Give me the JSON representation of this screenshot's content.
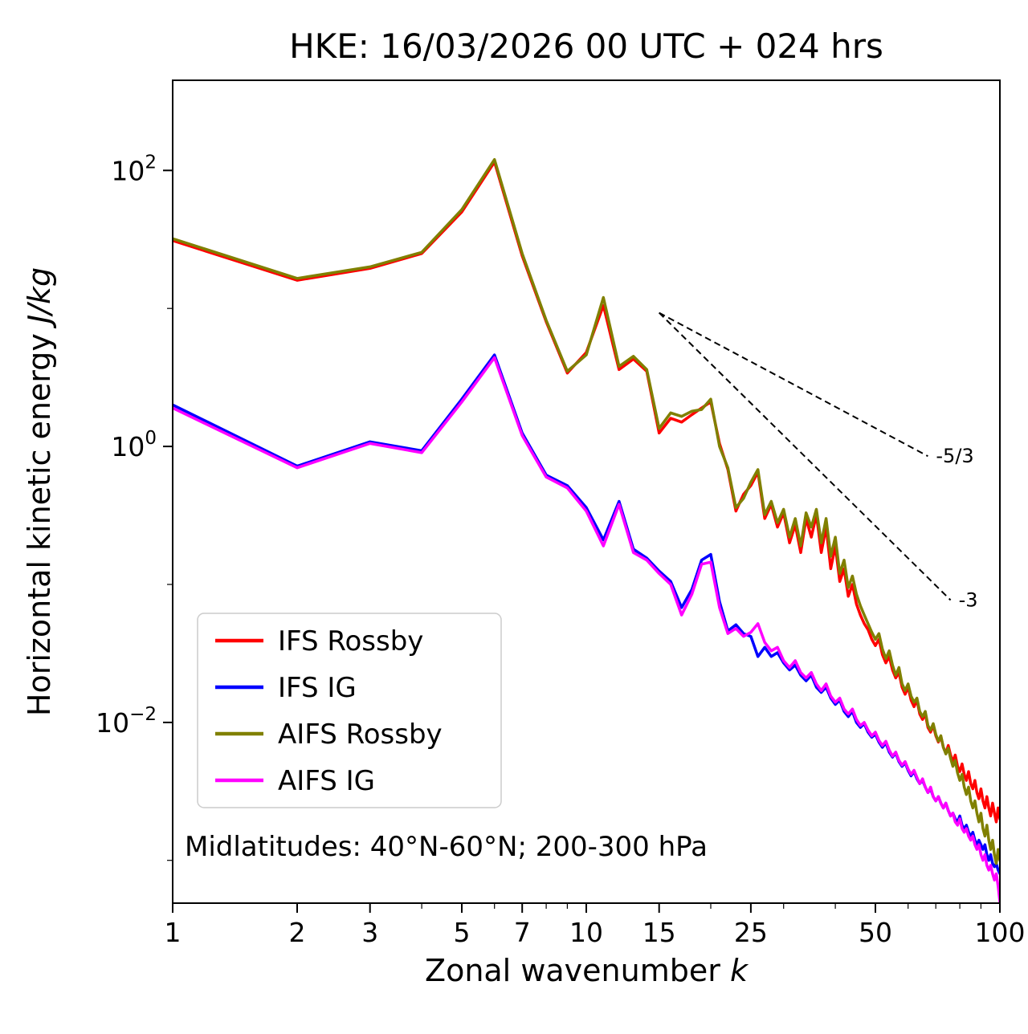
{
  "figure": {
    "title": "HKE: 16/03/2026 00 UTC + 024 hrs",
    "annotation": "Midlatitudes: 40°N-60°N; 200-300 hPa"
  },
  "chart_data": {
    "type": "line",
    "title": "HKE: 16/03/2026 00 UTC + 024 hrs",
    "xlabel": {
      "text": "Zonal wavenumber ",
      "italic": "k"
    },
    "ylabel": {
      "text": "Horizontal kinetic energy ",
      "italic": "J/kg"
    },
    "annotation": "Midlatitudes: 40°N-60°N; 200-300 hPa",
    "xscale": "log",
    "yscale": "log",
    "xlim": [
      1,
      100
    ],
    "ylim": [
      0.00049,
      450
    ],
    "xticks_major": [
      1,
      2,
      3,
      5,
      7,
      10,
      15,
      25,
      50,
      100
    ],
    "xticks_minor": [
      4,
      6,
      8,
      9,
      20,
      30,
      40,
      60,
      70,
      80,
      90
    ],
    "yticks": [
      {
        "exp": 2,
        "label": true
      },
      {
        "exp": 1,
        "label": false
      },
      {
        "exp": 0,
        "label": true
      },
      {
        "exp": -1,
        "label": false
      },
      {
        "exp": -2,
        "label": true
      },
      {
        "exp": -3,
        "label": false
      }
    ],
    "legend": {
      "position": "lower-left"
    },
    "reference_lines": [
      {
        "label": "-5/3",
        "x": [
          15,
          67
        ],
        "y": [
          9.3,
          0.85
        ]
      },
      {
        "label": "-3",
        "x": [
          15,
          76
        ],
        "y": [
          9.3,
          0.077
        ]
      }
    ],
    "x": [
      1,
      2,
      3,
      4,
      5,
      6,
      7,
      8,
      9,
      10,
      11,
      12,
      13,
      14,
      15,
      16,
      17,
      18,
      19,
      20,
      21,
      22,
      23,
      24,
      25,
      26,
      27,
      28,
      29,
      30,
      31,
      32,
      33,
      34,
      35,
      36,
      37,
      38,
      39,
      40,
      41,
      42,
      43,
      44,
      45,
      46,
      47,
      48,
      49,
      50,
      51,
      52,
      53,
      54,
      55,
      56,
      57,
      58,
      59,
      60,
      61,
      62,
      63,
      64,
      65,
      66,
      67,
      68,
      69,
      70,
      71,
      72,
      73,
      74,
      75,
      76,
      77,
      78,
      79,
      80,
      81,
      82,
      83,
      84,
      85,
      86,
      87,
      88,
      89,
      90,
      91,
      92,
      93,
      94,
      95,
      96,
      97,
      98,
      99,
      100
    ],
    "series": [
      {
        "name": "IFS Rossby",
        "color": "#ff0000",
        "values": [
          31,
          16,
          19.5,
          25,
          50,
          115,
          24,
          8.0,
          3.4,
          4.8,
          10.5,
          3.6,
          4.3,
          3.5,
          1.25,
          1.6,
          1.5,
          1.7,
          1.9,
          2.1,
          1.05,
          0.68,
          0.34,
          0.45,
          0.52,
          0.65,
          0.3,
          0.38,
          0.26,
          0.33,
          0.2,
          0.27,
          0.17,
          0.3,
          0.22,
          0.32,
          0.17,
          0.26,
          0.13,
          0.19,
          0.105,
          0.13,
          0.082,
          0.1,
          0.072,
          0.06,
          0.052,
          0.047,
          0.04,
          0.036,
          0.04,
          0.031,
          0.027,
          0.03,
          0.024,
          0.021,
          0.023,
          0.018,
          0.016,
          0.018,
          0.0145,
          0.013,
          0.0145,
          0.0115,
          0.0105,
          0.0115,
          0.0092,
          0.0085,
          0.0095,
          0.008,
          0.0072,
          0.0079,
          0.0066,
          0.006,
          0.0068,
          0.0058,
          0.0052,
          0.0058,
          0.0048,
          0.0044,
          0.005,
          0.0042,
          0.0038,
          0.0044,
          0.0036,
          0.0033,
          0.0038,
          0.0031,
          0.0028,
          0.0033,
          0.0027,
          0.0024,
          0.0029,
          0.0024,
          0.0021,
          0.0026,
          0.0022,
          0.0019,
          0.0024,
          0.002
        ]
      },
      {
        "name": "IFS IG",
        "color": "#0000ff",
        "values": [
          2.0,
          0.72,
          1.08,
          0.93,
          2.2,
          4.6,
          1.25,
          0.62,
          0.52,
          0.36,
          0.21,
          0.4,
          0.18,
          0.155,
          0.125,
          0.105,
          0.068,
          0.092,
          0.15,
          0.165,
          0.075,
          0.046,
          0.051,
          0.044,
          0.042,
          0.03,
          0.035,
          0.03,
          0.032,
          0.027,
          0.024,
          0.026,
          0.022,
          0.02,
          0.022,
          0.018,
          0.0165,
          0.018,
          0.015,
          0.0135,
          0.0145,
          0.012,
          0.011,
          0.012,
          0.01,
          0.0092,
          0.0098,
          0.0085,
          0.0078,
          0.0082,
          0.0072,
          0.0066,
          0.0071,
          0.0061,
          0.0056,
          0.006,
          0.0052,
          0.0048,
          0.0051,
          0.0045,
          0.0041,
          0.0044,
          0.0039,
          0.0036,
          0.0038,
          0.0034,
          0.0031,
          0.0033,
          0.0029,
          0.0027,
          0.0029,
          0.0026,
          0.0024,
          0.0026,
          0.0023,
          0.0021,
          0.0022,
          0.002,
          0.0019,
          0.0021,
          0.0018,
          0.0017,
          0.0018,
          0.0016,
          0.0015,
          0.0016,
          0.0014,
          0.0013,
          0.0014,
          0.0013,
          0.0012,
          0.0013,
          0.0011,
          0.001,
          0.0011,
          0.00095,
          0.0009,
          0.00095,
          0.00085,
          0.0008
        ]
      },
      {
        "name": "AIFS Rossby",
        "color": "#808000",
        "values": [
          32,
          16.5,
          20,
          25.5,
          52,
          120,
          25,
          8.2,
          3.5,
          4.6,
          12,
          3.8,
          4.5,
          3.6,
          1.35,
          1.75,
          1.65,
          1.8,
          1.85,
          2.2,
          1.0,
          0.7,
          0.36,
          0.42,
          0.55,
          0.68,
          0.32,
          0.4,
          0.28,
          0.35,
          0.22,
          0.3,
          0.19,
          0.33,
          0.26,
          0.35,
          0.2,
          0.3,
          0.16,
          0.22,
          0.12,
          0.15,
          0.095,
          0.115,
          0.085,
          0.07,
          0.06,
          0.052,
          0.045,
          0.04,
          0.044,
          0.034,
          0.029,
          0.033,
          0.026,
          0.022,
          0.025,
          0.019,
          0.017,
          0.019,
          0.0155,
          0.014,
          0.015,
          0.012,
          0.011,
          0.012,
          0.0095,
          0.0088,
          0.0098,
          0.0082,
          0.0073,
          0.008,
          0.0066,
          0.0059,
          0.0065,
          0.0055,
          0.0048,
          0.0053,
          0.0043,
          0.0038,
          0.0042,
          0.0034,
          0.003,
          0.0034,
          0.0027,
          0.0024,
          0.0027,
          0.0022,
          0.0019,
          0.0022,
          0.0017,
          0.0015,
          0.0018,
          0.0014,
          0.0012,
          0.0014,
          0.0011,
          0.00095,
          0.0012,
          0.001
        ]
      },
      {
        "name": "AIFS IG",
        "color": "#ff00ff",
        "values": [
          1.9,
          0.7,
          1.05,
          0.9,
          2.1,
          4.4,
          1.2,
          0.6,
          0.5,
          0.34,
          0.19,
          0.38,
          0.17,
          0.15,
          0.12,
          0.1,
          0.06,
          0.085,
          0.14,
          0.145,
          0.068,
          0.044,
          0.048,
          0.042,
          0.045,
          0.052,
          0.038,
          0.033,
          0.035,
          0.028,
          0.025,
          0.028,
          0.023,
          0.021,
          0.023,
          0.019,
          0.017,
          0.019,
          0.0155,
          0.014,
          0.015,
          0.0125,
          0.0115,
          0.0125,
          0.0105,
          0.0095,
          0.01,
          0.0088,
          0.008,
          0.0085,
          0.0074,
          0.0068,
          0.0073,
          0.0063,
          0.0057,
          0.0061,
          0.0053,
          0.0049,
          0.0052,
          0.0046,
          0.0042,
          0.0045,
          0.004,
          0.0036,
          0.0039,
          0.0034,
          0.0031,
          0.0034,
          0.0029,
          0.0027,
          0.0029,
          0.0026,
          0.0024,
          0.0026,
          0.0023,
          0.0021,
          0.0022,
          0.0019,
          0.0018,
          0.002,
          0.0017,
          0.0016,
          0.0017,
          0.0015,
          0.0014,
          0.0015,
          0.0013,
          0.0012,
          0.0013,
          0.0011,
          0.001,
          0.0011,
          0.00092,
          0.00085,
          0.00092,
          0.0008,
          0.00072,
          0.0008,
          0.00065,
          0.0005
        ]
      }
    ]
  }
}
